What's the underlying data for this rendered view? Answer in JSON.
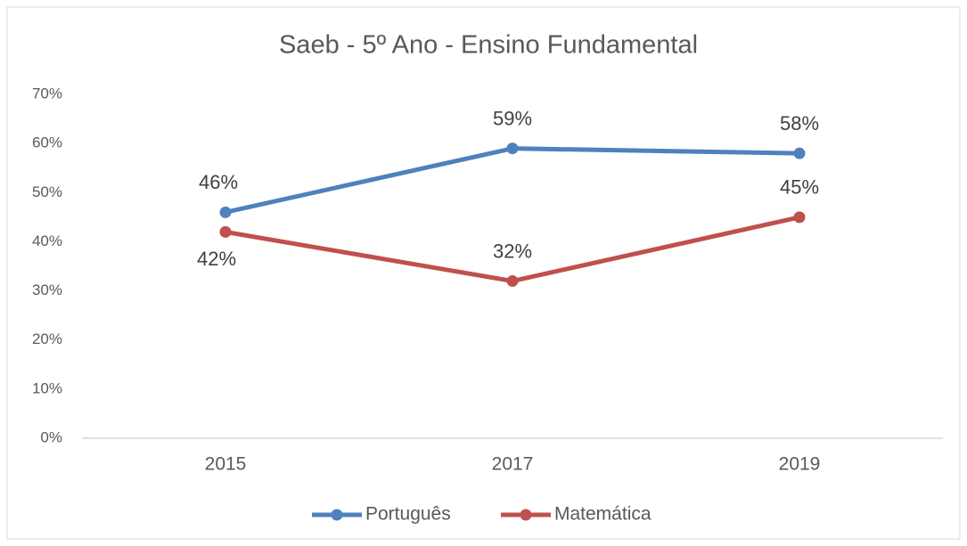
{
  "chart_data": {
    "type": "line",
    "title": "Saeb - 5º Ano - Ensino Fundamental",
    "categories": [
      "2015",
      "2017",
      "2019"
    ],
    "series": [
      {
        "name": "Português",
        "color": "#4f81bd",
        "values": [
          46,
          59,
          58
        ],
        "value_labels": [
          "46%",
          "59%",
          "58%"
        ]
      },
      {
        "name": "Matemática",
        "color": "#c0504d",
        "values": [
          42,
          32,
          45
        ],
        "value_labels": [
          "42%",
          "32%",
          "45%"
        ]
      }
    ],
    "ylim": [
      0,
      70
    ],
    "yticks": [
      {
        "value": 0,
        "label": "0%"
      },
      {
        "value": 10,
        "label": "10%"
      },
      {
        "value": 20,
        "label": "20%"
      },
      {
        "value": 30,
        "label": "30%"
      },
      {
        "value": 40,
        "label": "40%"
      },
      {
        "value": 50,
        "label": "50%"
      },
      {
        "value": 60,
        "label": "60%"
      },
      {
        "value": 70,
        "label": "70%"
      }
    ],
    "grid": false,
    "legend": "bottom"
  }
}
